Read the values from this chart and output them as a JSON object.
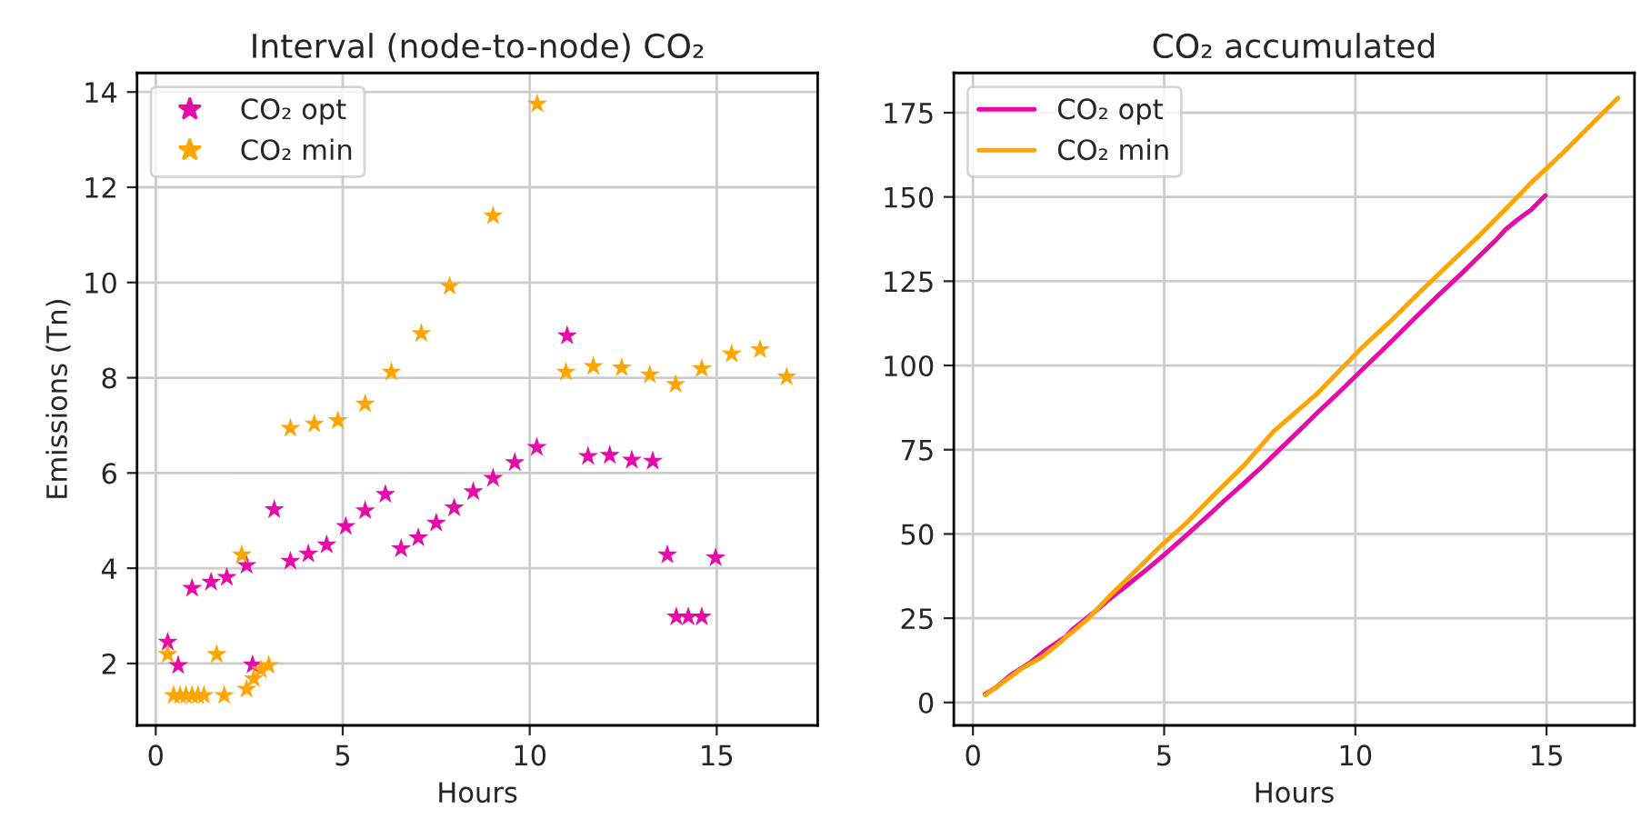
{
  "chart_data": [
    {
      "type": "scatter",
      "title": "Interval (node-to-node) CO₂",
      "xlabel": "Hours",
      "ylabel": "Emissions (Tn)",
      "marker": "star",
      "grid": true,
      "legend": "top left",
      "xlim": [
        -0.5,
        17.7
      ],
      "xticks": [
        0,
        5,
        10,
        15
      ],
      "ylim": [
        0.7,
        14.4
      ],
      "yticks": [
        2,
        4,
        6,
        8,
        10,
        12,
        14
      ],
      "series": [
        {
          "name": "CO₂ opt",
          "color": "#e60aa8",
          "x": [
            0.32,
            0.6,
            0.97,
            1.48,
            1.9,
            2.43,
            2.59,
            3.17,
            3.6,
            4.08,
            4.57,
            5.08,
            5.6,
            6.14,
            6.56,
            7.02,
            7.5,
            7.98,
            8.49,
            9.02,
            9.6,
            10.19,
            11.0,
            11.56,
            12.14,
            12.73,
            13.29,
            13.68,
            13.92,
            14.24,
            14.6,
            14.97
          ],
          "values": [
            2.45,
            1.96,
            3.58,
            3.71,
            3.81,
            4.06,
            1.97,
            5.23,
            4.15,
            4.3,
            4.49,
            4.88,
            5.21,
            5.55,
            4.41,
            4.64,
            4.95,
            5.27,
            5.61,
            5.89,
            6.22,
            6.54,
            8.88,
            6.35,
            6.37,
            6.27,
            6.25,
            4.28,
            2.98,
            2.98,
            2.98,
            4.22
          ]
        },
        {
          "name": "CO₂ min",
          "color": "#ffa500",
          "x": [
            0.32,
            0.48,
            0.65,
            0.81,
            0.97,
            1.13,
            1.29,
            1.63,
            1.83,
            2.3,
            2.43,
            2.62,
            2.81,
            3.02,
            3.6,
            4.24,
            4.87,
            5.6,
            6.3,
            7.1,
            7.86,
            9.02,
            10.2,
            10.97,
            11.7,
            12.46,
            13.21,
            13.9,
            14.6,
            15.4,
            16.16,
            16.87
          ],
          "values": [
            2.19,
            1.33,
            1.33,
            1.33,
            1.33,
            1.33,
            1.33,
            2.19,
            1.33,
            4.28,
            1.46,
            1.68,
            1.87,
            1.96,
            6.94,
            7.03,
            7.1,
            7.45,
            8.12,
            8.93,
            9.92,
            11.4,
            13.75,
            8.12,
            8.24,
            8.21,
            8.06,
            7.86,
            8.19,
            8.5,
            8.59,
            8.02
          ]
        }
      ]
    },
    {
      "type": "line",
      "title": "CO₂ accumulated",
      "xlabel": "Hours",
      "grid": true,
      "legend": "top left",
      "line_style": "solid",
      "xlim": [
        -0.5,
        17.3
      ],
      "xticks": [
        0,
        5,
        10,
        15
      ],
      "ylim": [
        -6.8,
        186.8
      ],
      "yticks": [
        0,
        25,
        50,
        75,
        100,
        125,
        150,
        175
      ],
      "series": [
        {
          "name": "CO₂ opt",
          "color": "#e60aa8",
          "x": [
            0.32,
            0.6,
            0.97,
            1.48,
            1.9,
            2.43,
            2.59,
            3.17,
            3.6,
            4.08,
            4.57,
            5.08,
            5.6,
            6.14,
            6.56,
            7.02,
            7.5,
            7.98,
            8.49,
            9.02,
            9.6,
            10.19,
            11.0,
            11.56,
            12.14,
            12.73,
            13.29,
            13.68,
            13.92,
            14.24,
            14.6,
            14.97
          ],
          "values": [
            2.45,
            4.41,
            7.99,
            11.7,
            15.51,
            19.57,
            21.54,
            26.77,
            30.92,
            35.22,
            39.71,
            44.59,
            49.8,
            55.35,
            59.76,
            64.4,
            69.35,
            74.62,
            80.23,
            86.12,
            92.34,
            98.88,
            107.76,
            114.11,
            120.48,
            126.75,
            133.0,
            137.28,
            140.26,
            143.24,
            146.22,
            150.44
          ]
        },
        {
          "name": "CO₂ min",
          "color": "#ffa500",
          "x": [
            0.32,
            0.48,
            0.65,
            0.81,
            0.97,
            1.13,
            1.29,
            1.63,
            1.83,
            2.3,
            2.43,
            2.62,
            2.81,
            3.02,
            3.6,
            4.24,
            4.87,
            5.6,
            6.3,
            7.1,
            7.86,
            9.02,
            10.2,
            10.97,
            11.7,
            12.46,
            13.21,
            13.9,
            14.6,
            15.4,
            16.16,
            16.87
          ],
          "values": [
            2.19,
            3.52,
            4.85,
            6.18,
            7.51,
            8.84,
            10.17,
            12.36,
            13.69,
            17.97,
            19.43,
            21.11,
            22.98,
            24.94,
            31.88,
            38.91,
            46.01,
            53.46,
            61.58,
            70.51,
            80.43,
            91.83,
            105.58,
            113.7,
            121.94,
            130.15,
            138.21,
            146.07,
            154.26,
            162.76,
            171.35,
            179.37
          ]
        }
      ]
    }
  ]
}
